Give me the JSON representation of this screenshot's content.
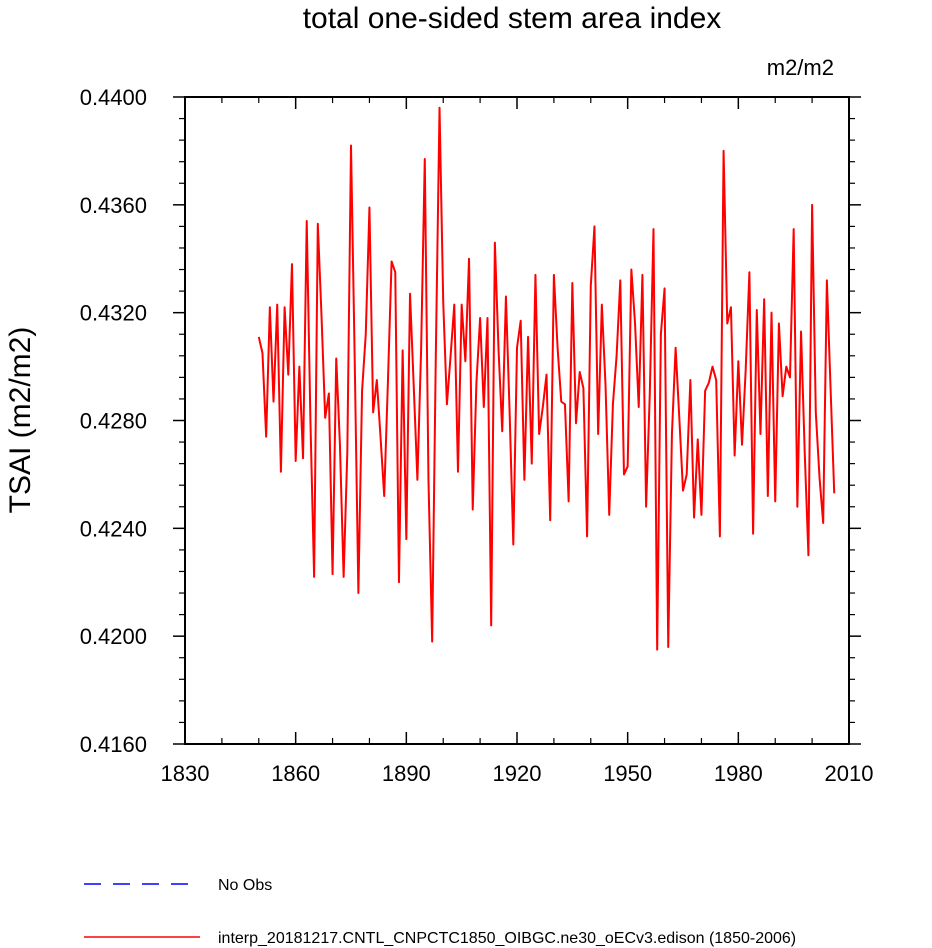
{
  "chart_data": {
    "type": "line",
    "title": "total one-sided stem area index",
    "units_label": "m2/m2",
    "ylabel": "TSAI  (m2/m2)",
    "xlabel": "",
    "xlim": [
      1830,
      2010
    ],
    "ylim": [
      0.416,
      0.44
    ],
    "x_ticks": [
      1830,
      1860,
      1890,
      1920,
      1950,
      1980,
      2010
    ],
    "x_tick_labels": [
      "1830",
      "1860",
      "1890",
      "1920",
      "1950",
      "1980",
      "2010"
    ],
    "y_ticks": [
      0.416,
      0.42,
      0.424,
      0.428,
      0.432,
      0.436,
      0.44
    ],
    "y_tick_labels": [
      "0.4160",
      "0.4200",
      "0.4240",
      "0.4280",
      "0.4320",
      "0.4360",
      "0.4400"
    ],
    "grid": false,
    "legend": [
      {
        "label": "No Obs",
        "color": "#0000ff",
        "style": "dashed"
      },
      {
        "label": "interp_20181217.CNTL_CNPCTC1850_OIBGC.ne30_oECv3.edison (1850-2006)",
        "color": "#ff0000",
        "style": "solid"
      }
    ],
    "series": [
      {
        "color": "#ff0000",
        "x": [
          1850,
          1851,
          1852,
          1853,
          1854,
          1855,
          1856,
          1857,
          1858,
          1859,
          1860,
          1861,
          1862,
          1863,
          1864,
          1865,
          1866,
          1867,
          1868,
          1869,
          1870,
          1871,
          1872,
          1873,
          1874,
          1875,
          1876,
          1877,
          1878,
          1879,
          1880,
          1881,
          1882,
          1883,
          1884,
          1885,
          1886,
          1887,
          1888,
          1889,
          1890,
          1891,
          1892,
          1893,
          1894,
          1895,
          1896,
          1897,
          1898,
          1899,
          1900,
          1901,
          1902,
          1903,
          1904,
          1905,
          1906,
          1907,
          1908,
          1909,
          1910,
          1911,
          1912,
          1913,
          1914,
          1915,
          1916,
          1917,
          1918,
          1919,
          1920,
          1921,
          1922,
          1923,
          1924,
          1925,
          1926,
          1927,
          1928,
          1929,
          1930,
          1931,
          1932,
          1933,
          1934,
          1935,
          1936,
          1937,
          1938,
          1939,
          1940,
          1941,
          1942,
          1943,
          1944,
          1945,
          1946,
          1947,
          1948,
          1949,
          1950,
          1951,
          1952,
          1953,
          1954,
          1955,
          1956,
          1957,
          1958,
          1959,
          1960,
          1961,
          1962,
          1963,
          1964,
          1965,
          1966,
          1967,
          1968,
          1969,
          1970,
          1971,
          1972,
          1973,
          1974,
          1975,
          1976,
          1977,
          1978,
          1979,
          1980,
          1981,
          1982,
          1983,
          1984,
          1985,
          1986,
          1987,
          1988,
          1989,
          1990,
          1991,
          1992,
          1993,
          1994,
          1995,
          1996,
          1997,
          1998,
          1999,
          2000,
          2001,
          2002,
          2003,
          2004,
          2005,
          2006
        ],
        "values": [
          0.4311,
          0.4305,
          0.4274,
          0.4322,
          0.4287,
          0.4323,
          0.4261,
          0.4322,
          0.4297,
          0.4338,
          0.4265,
          0.43,
          0.4266,
          0.4354,
          0.428,
          0.4222,
          0.4353,
          0.4319,
          0.4281,
          0.429,
          0.4223,
          0.4303,
          0.4271,
          0.4222,
          0.4268,
          0.4382,
          0.4303,
          0.4216,
          0.4291,
          0.4312,
          0.4359,
          0.4283,
          0.4295,
          0.4274,
          0.4252,
          0.4294,
          0.4339,
          0.4335,
          0.422,
          0.4306,
          0.4236,
          0.4327,
          0.4293,
          0.4258,
          0.4306,
          0.4377,
          0.4258,
          0.4198,
          0.4305,
          0.4396,
          0.4324,
          0.4286,
          0.4304,
          0.4323,
          0.4261,
          0.4323,
          0.4302,
          0.434,
          0.4247,
          0.4294,
          0.4318,
          0.4285,
          0.4318,
          0.4204,
          0.4346,
          0.4306,
          0.4276,
          0.4326,
          0.4283,
          0.4234,
          0.4307,
          0.4317,
          0.4258,
          0.4311,
          0.4264,
          0.4334,
          0.4275,
          0.4285,
          0.4297,
          0.4243,
          0.4334,
          0.4307,
          0.4287,
          0.4286,
          0.425,
          0.4331,
          0.4279,
          0.4298,
          0.4292,
          0.4237,
          0.433,
          0.4352,
          0.4275,
          0.4323,
          0.4293,
          0.4245,
          0.4286,
          0.4304,
          0.4332,
          0.426,
          0.4263,
          0.4336,
          0.4316,
          0.4285,
          0.4334,
          0.4248,
          0.429,
          0.4351,
          0.4195,
          0.4312,
          0.4329,
          0.4196,
          0.4275,
          0.4307,
          0.4281,
          0.4254,
          0.426,
          0.4295,
          0.4244,
          0.4273,
          0.4245,
          0.4291,
          0.4294,
          0.43,
          0.4295,
          0.4237,
          0.438,
          0.4316,
          0.4322,
          0.4267,
          0.4302,
          0.4271,
          0.4299,
          0.4335,
          0.4238,
          0.4321,
          0.4275,
          0.4325,
          0.4252,
          0.432,
          0.425,
          0.4316,
          0.4289,
          0.43,
          0.4296,
          0.4351,
          0.4248,
          0.4313,
          0.4268,
          0.423,
          0.436,
          0.4283,
          0.4259,
          0.4242,
          0.4332,
          0.4292,
          0.4253
        ]
      }
    ]
  }
}
